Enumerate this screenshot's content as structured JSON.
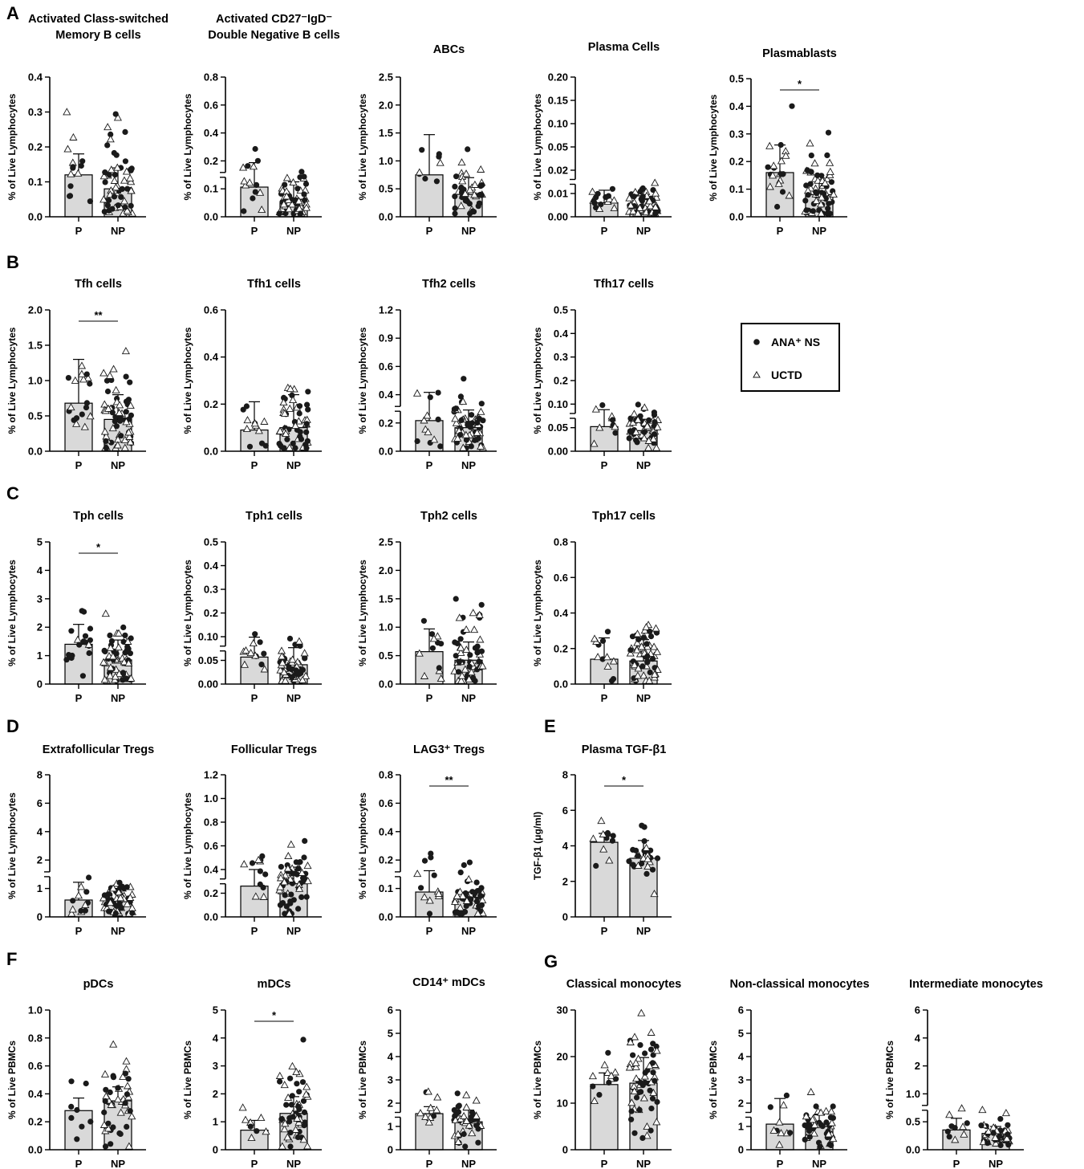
{
  "panel_letters": [
    "A",
    "B",
    "C",
    "D",
    "E",
    "F",
    "G"
  ],
  "legend": {
    "entries": [
      {
        "label": "ANA⁺ NS",
        "marker": "filled-circle"
      },
      {
        "label": "UCTD",
        "marker": "open-triangle"
      }
    ]
  },
  "colors": {
    "bar_fill": "#d9d9d9",
    "marker_fill": "#1a1a1a",
    "axis": "#000000"
  },
  "chart_data": [
    {
      "id": "a1",
      "type": "bar",
      "title": "Activated Class-switched\nMemory B cells",
      "ylabel": "% of Live Lymphocytes",
      "categories": [
        "P",
        "NP"
      ],
      "yticks": [
        "0.0",
        "0.1",
        "0.2",
        "0.3",
        "0.4"
      ],
      "ylim": [
        0,
        0.4
      ],
      "values": [
        0.12,
        0.08
      ],
      "sd": [
        0.06,
        0.06
      ],
      "n": [
        14,
        60
      ],
      "spread": [
        0.2,
        0.28
      ],
      "significance": null
    },
    {
      "id": "a2",
      "type": "bar",
      "title": "Activated CD27⁻IgD⁻\nDouble Negative B cells",
      "ylabel": "% of Live Lymphocytes",
      "categories": [
        "P",
        "NP"
      ],
      "yticks": [
        "0.0",
        "0.1",
        "0.2",
        "0.4",
        "0.6",
        "0.8"
      ],
      "ylim": [
        0,
        0.8
      ],
      "values": [
        0.17,
        0.08
      ],
      "sd": [
        0.14,
        0.12
      ],
      "n": [
        14,
        60
      ],
      "spread": [
        0.32,
        0.3
      ],
      "significance": null,
      "axis_break": true
    },
    {
      "id": "a3",
      "type": "bar",
      "title": "ABCs",
      "ylabel": "% of Live Lymphocytes",
      "categories": [
        "P",
        "NP"
      ],
      "yticks": [
        "0.0",
        "0.5",
        "1.0",
        "1.5",
        "2.0",
        "2.5"
      ],
      "ylim": [
        0,
        2.5
      ],
      "values": [
        0.75,
        0.4
      ],
      "sd": [
        0.72,
        0.3
      ],
      "n": [
        8,
        44
      ],
      "spread": [
        1.4,
        0.9
      ],
      "significance": null
    },
    {
      "id": "a4",
      "type": "bar",
      "title": "Plasma Cells",
      "ylabel": "% of Live Lymphocytes",
      "categories": [
        "P",
        "NP"
      ],
      "yticks": [
        "0.00",
        "0.01",
        "0.02",
        "0.05",
        "0.10",
        "0.15",
        "0.20"
      ],
      "ylim": [
        0,
        0.2
      ],
      "values": [
        0.02,
        0.015
      ],
      "sd": [
        0.018,
        0.015
      ],
      "n": [
        16,
        60
      ],
      "spread": [
        0.03,
        0.05
      ],
      "significance": null,
      "axis_break": true
    },
    {
      "id": "a5",
      "type": "bar",
      "title": "Plasmablasts",
      "ylabel": "% of Live Lymphocytes",
      "categories": [
        "P",
        "NP"
      ],
      "yticks": [
        "0.0",
        "0.1",
        "0.2",
        "0.3",
        "0.4",
        "0.5"
      ],
      "ylim": [
        0,
        0.5
      ],
      "values": [
        0.16,
        0.08
      ],
      "sd": [
        0.1,
        0.06
      ],
      "n": [
        20,
        64
      ],
      "spread": [
        0.3,
        0.25
      ],
      "significance": "*"
    },
    {
      "id": "b1",
      "type": "bar",
      "title": "Tfh cells",
      "ylabel": "% of Live Lymphocytes",
      "categories": [
        "P",
        "NP"
      ],
      "yticks": [
        "0.0",
        "0.5",
        "1.0",
        "1.5",
        "2.0"
      ],
      "ylim": [
        0,
        2.0
      ],
      "values": [
        0.68,
        0.45
      ],
      "sd": [
        0.62,
        0.35
      ],
      "n": [
        18,
        60
      ],
      "spread": [
        1.4,
        1.2
      ],
      "significance": "**"
    },
    {
      "id": "b2",
      "type": "bar",
      "title": "Tfh1 cells",
      "ylabel": "% of Live Lymphocytes",
      "categories": [
        "P",
        "NP"
      ],
      "yticks": [
        "0.0",
        "0.2",
        "0.4",
        "0.6"
      ],
      "ylim": [
        0,
        0.6
      ],
      "values": [
        0.09,
        0.1
      ],
      "sd": [
        0.12,
        0.14
      ],
      "n": [
        12,
        56
      ],
      "spread": [
        0.24,
        0.35
      ],
      "significance": null
    },
    {
      "id": "b3",
      "type": "bar",
      "title": "Tfh2 cells",
      "ylabel": "% of Live Lymphocytes",
      "categories": [
        "P",
        "NP"
      ],
      "yticks": [
        "0.0",
        "0.2",
        "0.4",
        "0.6",
        "0.9",
        "1.2"
      ],
      "ylim": [
        0,
        1.2
      ],
      "values": [
        0.26,
        0.2
      ],
      "sd": [
        0.24,
        0.15
      ],
      "n": [
        12,
        60
      ],
      "spread": [
        0.5,
        0.45
      ],
      "significance": null,
      "axis_break": true
    },
    {
      "id": "b4",
      "type": "bar",
      "title": "Tfh17 cells",
      "ylabel": "% of Live Lymphocytes",
      "categories": [
        "P",
        "NP"
      ],
      "yticks": [
        "0.00",
        "0.05",
        "0.10",
        "0.2",
        "0.3",
        "0.4",
        "0.5"
      ],
      "ylim": [
        0,
        0.5
      ],
      "values": [
        0.087,
        0.073
      ],
      "sd": [
        0.06,
        0.04
      ],
      "n": [
        12,
        56
      ],
      "spread": [
        0.12,
        0.11
      ],
      "significance": null,
      "axis_break": true
    },
    {
      "id": "c1",
      "type": "bar",
      "title": "Tph cells",
      "ylabel": "% of Live Lymphocytes",
      "categories": [
        "P",
        "NP"
      ],
      "yticks": [
        "0",
        "1",
        "2",
        "3",
        "4",
        "5"
      ],
      "ylim": [
        0,
        5
      ],
      "values": [
        1.4,
        0.85
      ],
      "sd": [
        0.7,
        0.7
      ],
      "n": [
        18,
        60
      ],
      "spread": [
        2.2,
        2.2
      ],
      "significance": "*"
    },
    {
      "id": "c2",
      "type": "bar",
      "title": "Tph1 cells",
      "ylabel": "% of Live Lymphocytes",
      "categories": [
        "P",
        "NP"
      ],
      "yticks": [
        "0.00",
        "0.05",
        "0.10",
        "0.2",
        "0.3",
        "0.4",
        "0.5"
      ],
      "ylim": [
        0,
        0.5
      ],
      "values": [
        0.095,
        0.068
      ],
      "sd": [
        0.07,
        0.06
      ],
      "n": [
        12,
        56
      ],
      "spread": [
        0.14,
        0.13
      ],
      "significance": null,
      "axis_break": true
    },
    {
      "id": "c3",
      "type": "bar",
      "title": "Tph2 cells",
      "ylabel": "% of Live Lymphocytes",
      "categories": [
        "P",
        "NP"
      ],
      "yticks": [
        "0.0",
        "0.5",
        "1.0",
        "1.5",
        "2.0",
        "2.5"
      ],
      "ylim": [
        0,
        2.5
      ],
      "values": [
        0.57,
        0.42
      ],
      "sd": [
        0.4,
        0.32
      ],
      "n": [
        12,
        60
      ],
      "spread": [
        0.9,
        1.2
      ],
      "significance": null
    },
    {
      "id": "c4",
      "type": "bar",
      "title": "Tph17 cells",
      "ylabel": "% of Live Lymphocytes",
      "categories": [
        "P",
        "NP"
      ],
      "yticks": [
        "0.0",
        "0.2",
        "0.4",
        "0.6",
        "0.8"
      ],
      "ylim": [
        0,
        0.8
      ],
      "values": [
        0.14,
        0.13
      ],
      "sd": [
        0.12,
        0.12
      ],
      "n": [
        12,
        60
      ],
      "spread": [
        0.3,
        0.35
      ],
      "significance": null
    },
    {
      "id": "d1",
      "type": "bar",
      "title": "Extrafollicular Tregs",
      "ylabel": "% of Live Lymphocytes",
      "categories": [
        "P",
        "NP"
      ],
      "yticks": [
        "0",
        "1",
        "2",
        "4",
        "6",
        "8"
      ],
      "ylim": [
        0,
        8
      ],
      "values": [
        0.95,
        0.9
      ],
      "sd": [
        1.0,
        0.7
      ],
      "n": [
        12,
        60
      ],
      "spread": [
        1.9,
        2.0
      ],
      "significance": null,
      "axis_break": true
    },
    {
      "id": "d2",
      "type": "bar",
      "title": "Follicular Tregs",
      "ylabel": "% of Live Lymphocytes",
      "categories": [
        "P",
        "NP"
      ],
      "yticks": [
        "0.0",
        "0.2",
        "0.4",
        "0.6",
        "0.8",
        "1.0",
        "1.2"
      ],
      "ylim": [
        0,
        1.2
      ],
      "values": [
        0.26,
        0.28
      ],
      "sd": [
        0.14,
        0.14
      ],
      "n": [
        12,
        60
      ],
      "spread": [
        0.5,
        0.55
      ],
      "significance": null,
      "axis_break": true
    },
    {
      "id": "d3",
      "type": "bar",
      "title": "LAG3⁺ Tregs",
      "ylabel": "% of Live Lymphocytes",
      "categories": [
        "P",
        "NP"
      ],
      "yticks": [
        "0.0",
        "0.1",
        "0.2",
        "0.4",
        "0.6",
        "0.8"
      ],
      "ylim": [
        0,
        0.8
      ],
      "values": [
        0.14,
        0.1
      ],
      "sd": [
        0.12,
        0.04
      ],
      "n": [
        12,
        60
      ],
      "spread": [
        0.3,
        0.25
      ],
      "significance": "**",
      "axis_break": true
    },
    {
      "id": "e1",
      "type": "bar",
      "title": "Plasma TGF-β1",
      "ylabel": "TGF-β1 (μg/ml)",
      "categories": [
        "P",
        "NP"
      ],
      "yticks": [
        "0",
        "2",
        "4",
        "6",
        "8"
      ],
      "ylim": [
        0,
        8
      ],
      "values": [
        4.2,
        3.3
      ],
      "sd": [
        0.5,
        1.0
      ],
      "n": [
        12,
        30
      ],
      "spread": [
        1.6,
        2.4
      ],
      "significance": "*"
    },
    {
      "id": "f1",
      "type": "bar",
      "title": "pDCs",
      "ylabel": "% of Live PBMCs",
      "categories": [
        "P",
        "NP"
      ],
      "yticks": [
        "0.0",
        "0.2",
        "0.4",
        "0.6",
        "0.8",
        "1.0"
      ],
      "ylim": [
        0,
        1.0
      ],
      "values": [
        0.28,
        0.35
      ],
      "sd": [
        0.09,
        0.1
      ],
      "n": [
        8,
        48
      ],
      "spread": [
        0.45,
        0.5
      ],
      "significance": null
    },
    {
      "id": "f2",
      "type": "bar",
      "title": "mDCs",
      "ylabel": "% of Live PBMCs",
      "categories": [
        "P",
        "NP"
      ],
      "yticks": [
        "0",
        "1",
        "2",
        "3",
        "4",
        "5"
      ],
      "ylim": [
        0,
        5
      ],
      "values": [
        0.7,
        1.3
      ],
      "sd": [
        0.35,
        0.6
      ],
      "n": [
        8,
        56
      ],
      "spread": [
        1.0,
        3.0
      ],
      "significance": "*"
    },
    {
      "id": "f3",
      "type": "bar",
      "title": "CD14⁺ mDCs",
      "ylabel": "% of Live PBMCs",
      "categories": [
        "P",
        "NP"
      ],
      "yticks": [
        "0",
        "1",
        "2",
        "3",
        "4",
        "5",
        "6"
      ],
      "ylim": [
        0,
        6
      ],
      "values": [
        1.55,
        1.2
      ],
      "sd": [
        0.3,
        0.5
      ],
      "n": [
        10,
        50
      ],
      "spread": [
        1.4,
        1.8
      ],
      "significance": null,
      "axis_break": true
    },
    {
      "id": "g1",
      "type": "bar",
      "title": "Classical monocytes",
      "ylabel": "% of Live PBMCs",
      "categories": [
        "P",
        "NP"
      ],
      "yticks": [
        "0",
        "10",
        "20",
        "30"
      ],
      "ylim": [
        0,
        30
      ],
      "values": [
        14,
        14.3
      ],
      "sd": [
        2.5,
        5.5
      ],
      "n": [
        12,
        60
      ],
      "spread": [
        8,
        20
      ],
      "significance": null
    },
    {
      "id": "g2",
      "type": "bar",
      "title": "Non-classical monocytes",
      "ylabel": "% of Live PBMCs",
      "categories": [
        "P",
        "NP"
      ],
      "yticks": [
        "0",
        "1",
        "2",
        "3",
        "4",
        "5",
        "6"
      ],
      "ylim": [
        0,
        6
      ],
      "values": [
        1.1,
        1.0
      ],
      "sd": [
        1.1,
        0.5
      ],
      "n": [
        10,
        50
      ],
      "spread": [
        2.0,
        2.0
      ],
      "significance": null,
      "axis_break": true
    },
    {
      "id": "g3",
      "type": "bar",
      "title": "Intermediate monocytes",
      "ylabel": "% of Live PBMCs",
      "categories": [
        "P",
        "NP"
      ],
      "yticks": [
        "0.0",
        "0.5",
        "1.0",
        "2",
        "4",
        "6"
      ],
      "ylim": [
        0,
        6
      ],
      "values": [
        0.85,
        0.7
      ],
      "sd": [
        0.5,
        0.3
      ],
      "n": [
        10,
        50
      ],
      "spread": [
        1.2,
        1.5
      ],
      "significance": null,
      "axis_break": true
    }
  ]
}
